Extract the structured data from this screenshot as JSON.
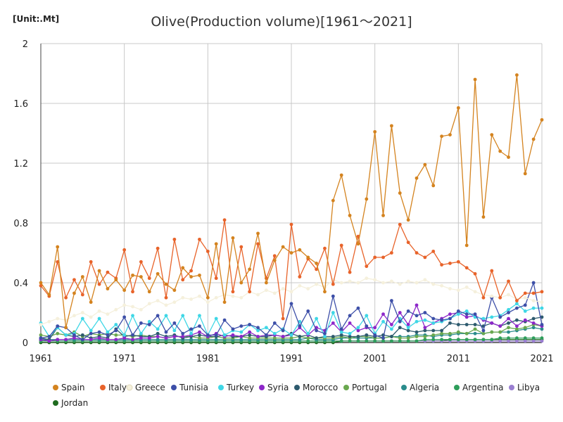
{
  "chart_data": {
    "type": "line",
    "title": "Olive(Production volume)[1961～2021]",
    "unit_label": "[Unit:.Mt]",
    "xlim": [
      1961,
      2021
    ],
    "ylim": [
      0,
      2
    ],
    "x_ticks": [
      1961,
      1971,
      1981,
      1991,
      2001,
      2011,
      2021
    ],
    "y_ticks": [
      0,
      0.4,
      0.8,
      1.2,
      1.6,
      2
    ],
    "y_tick_labels": [
      "0",
      "0.4",
      "0.8",
      "1.2",
      "1.6",
      "2"
    ],
    "grid": true,
    "legend_position": "bottom",
    "series": [
      {
        "name": "Spain",
        "color": "#d4831f",
        "values": [
          0.4,
          0.32,
          0.64,
          0.1,
          0.33,
          0.44,
          0.27,
          0.48,
          0.36,
          0.42,
          0.35,
          0.45,
          0.44,
          0.34,
          0.46,
          0.39,
          0.35,
          0.5,
          0.44,
          0.45,
          0.3,
          0.66,
          0.27,
          0.7,
          0.4,
          0.49,
          0.73,
          0.4,
          0.55,
          0.64,
          0.6,
          0.62,
          0.57,
          0.53,
          0.34,
          0.95,
          1.12,
          0.85,
          0.66,
          0.96,
          1.41,
          0.85,
          1.45,
          1.0,
          0.82,
          1.1,
          1.19,
          1.05,
          1.38,
          1.39,
          1.57,
          0.65,
          1.76,
          0.84,
          1.39,
          1.28,
          1.24,
          1.79,
          1.13,
          1.36,
          1.49
        ]
      },
      {
        "name": "Italy",
        "color": "#e8632a",
        "values": [
          0.38,
          0.31,
          0.54,
          0.3,
          0.42,
          0.32,
          0.54,
          0.39,
          0.47,
          0.43,
          0.62,
          0.34,
          0.54,
          0.43,
          0.63,
          0.3,
          0.69,
          0.42,
          0.48,
          0.69,
          0.61,
          0.43,
          0.82,
          0.34,
          0.64,
          0.34,
          0.66,
          0.43,
          0.58,
          0.16,
          0.79,
          0.44,
          0.56,
          0.49,
          0.63,
          0.39,
          0.65,
          0.47,
          0.71,
          0.51,
          0.57,
          0.57,
          0.6,
          0.79,
          0.67,
          0.6,
          0.57,
          0.61,
          0.52,
          0.53,
          0.54,
          0.5,
          0.46,
          0.3,
          0.48,
          0.3,
          0.41,
          0.28,
          0.33,
          0.33,
          0.34
        ]
      },
      {
        "name": "Greece",
        "color": "#f5f0dc",
        "values": [
          0.12,
          0.14,
          0.16,
          0.15,
          0.18,
          0.2,
          0.17,
          0.21,
          0.19,
          0.22,
          0.25,
          0.24,
          0.22,
          0.26,
          0.28,
          0.25,
          0.27,
          0.3,
          0.29,
          0.31,
          0.27,
          0.3,
          0.32,
          0.31,
          0.3,
          0.34,
          0.32,
          0.35,
          0.33,
          0.36,
          0.34,
          0.38,
          0.36,
          0.39,
          0.37,
          0.42,
          0.4,
          0.41,
          0.4,
          0.43,
          0.42,
          0.4,
          0.41,
          0.39,
          0.41,
          0.4,
          0.42,
          0.39,
          0.38,
          0.36,
          0.35,
          0.37,
          0.34,
          0.32,
          0.31,
          0.3,
          0.32,
          0.29,
          0.3,
          0.28,
          0.27
        ]
      },
      {
        "name": "Tunisia",
        "color": "#3d4fa8",
        "values": [
          0.03,
          0.04,
          0.11,
          0.1,
          0.05,
          0.02,
          0.06,
          0.07,
          0.05,
          0.08,
          0.17,
          0.05,
          0.13,
          0.12,
          0.18,
          0.07,
          0.13,
          0.06,
          0.09,
          0.11,
          0.05,
          0.05,
          0.15,
          0.09,
          0.11,
          0.12,
          0.1,
          0.05,
          0.13,
          0.08,
          0.26,
          0.11,
          0.21,
          0.08,
          0.06,
          0.31,
          0.09,
          0.18,
          0.23,
          0.11,
          0.05,
          0.03,
          0.28,
          0.14,
          0.21,
          0.18,
          0.2,
          0.16,
          0.15,
          0.16,
          0.21,
          0.19,
          0.19,
          0.08,
          0.3,
          0.17,
          0.2,
          0.23,
          0.25,
          0.4,
          0.12
        ]
      },
      {
        "name": "Turkey",
        "color": "#3fd7e6",
        "values": [
          0.13,
          0.04,
          0.1,
          0.05,
          0.06,
          0.16,
          0.08,
          0.16,
          0.07,
          0.12,
          0.05,
          0.18,
          0.06,
          0.14,
          0.09,
          0.18,
          0.08,
          0.18,
          0.06,
          0.18,
          0.05,
          0.16,
          0.05,
          0.08,
          0.07,
          0.12,
          0.08,
          0.1,
          0.06,
          0.09,
          0.05,
          0.14,
          0.06,
          0.16,
          0.04,
          0.2,
          0.07,
          0.06,
          0.1,
          0.18,
          0.06,
          0.14,
          0.09,
          0.16,
          0.1,
          0.14,
          0.15,
          0.13,
          0.14,
          0.16,
          0.19,
          0.21,
          0.17,
          0.16,
          0.17,
          0.18,
          0.22,
          0.26,
          0.21,
          0.23,
          0.23
        ]
      },
      {
        "name": "Syria",
        "color": "#8d27c9",
        "values": [
          0.02,
          0.01,
          0.02,
          0.02,
          0.03,
          0.02,
          0.02,
          0.03,
          0.02,
          0.02,
          0.03,
          0.02,
          0.03,
          0.03,
          0.04,
          0.03,
          0.04,
          0.04,
          0.05,
          0.07,
          0.04,
          0.06,
          0.04,
          0.05,
          0.04,
          0.07,
          0.04,
          0.05,
          0.05,
          0.04,
          0.05,
          0.1,
          0.05,
          0.1,
          0.08,
          0.13,
          0.07,
          0.13,
          0.08,
          0.1,
          0.1,
          0.19,
          0.12,
          0.2,
          0.12,
          0.25,
          0.1,
          0.13,
          0.16,
          0.19,
          0.2,
          0.17,
          0.18,
          0.15,
          0.13,
          0.11,
          0.16,
          0.11,
          0.15,
          0.13,
          0.11
        ]
      },
      {
        "name": "Morocco",
        "color": "#2d5a6e",
        "values": [
          0.03,
          0.02,
          0.1,
          0.05,
          0.04,
          0.05,
          0.03,
          0.04,
          0.03,
          0.09,
          0.04,
          0.05,
          0.04,
          0.04,
          0.06,
          0.04,
          0.05,
          0.03,
          0.04,
          0.05,
          0.04,
          0.04,
          0.05,
          0.04,
          0.04,
          0.05,
          0.04,
          0.04,
          0.05,
          0.04,
          0.06,
          0.04,
          0.05,
          0.03,
          0.04,
          0.04,
          0.05,
          0.04,
          0.04,
          0.05,
          0.04,
          0.05,
          0.04,
          0.1,
          0.08,
          0.07,
          0.08,
          0.08,
          0.08,
          0.13,
          0.12,
          0.12,
          0.12,
          0.11,
          0.13,
          0.11,
          0.13,
          0.15,
          0.14,
          0.16,
          0.17
        ]
      },
      {
        "name": "Portugal",
        "color": "#6aa84f",
        "values": [
          0.05,
          0.04,
          0.06,
          0.05,
          0.07,
          0.04,
          0.06,
          0.05,
          0.06,
          0.05,
          0.05,
          0.04,
          0.05,
          0.04,
          0.04,
          0.03,
          0.04,
          0.04,
          0.04,
          0.03,
          0.03,
          0.04,
          0.03,
          0.03,
          0.04,
          0.03,
          0.03,
          0.03,
          0.03,
          0.03,
          0.03,
          0.04,
          0.03,
          0.03,
          0.03,
          0.03,
          0.04,
          0.03,
          0.04,
          0.04,
          0.03,
          0.03,
          0.04,
          0.03,
          0.03,
          0.04,
          0.04,
          0.05,
          0.06,
          0.06,
          0.07,
          0.06,
          0.09,
          0.06,
          0.07,
          0.07,
          0.1,
          0.09,
          0.1,
          0.12,
          0.11
        ]
      },
      {
        "name": "Algeria",
        "color": "#2a8c8c",
        "values": [
          0.02,
          0.02,
          0.02,
          0.02,
          0.02,
          0.02,
          0.02,
          0.02,
          0.02,
          0.02,
          0.02,
          0.02,
          0.02,
          0.02,
          0.02,
          0.02,
          0.02,
          0.02,
          0.02,
          0.02,
          0.02,
          0.02,
          0.02,
          0.02,
          0.02,
          0.02,
          0.02,
          0.02,
          0.02,
          0.02,
          0.02,
          0.02,
          0.03,
          0.02,
          0.02,
          0.02,
          0.03,
          0.03,
          0.03,
          0.03,
          0.03,
          0.03,
          0.04,
          0.04,
          0.04,
          0.05,
          0.05,
          0.04,
          0.05,
          0.05,
          0.06,
          0.06,
          0.06,
          0.06,
          0.07,
          0.07,
          0.07,
          0.08,
          0.09,
          0.1,
          0.09
        ]
      },
      {
        "name": "Argentina",
        "color": "#2e9e5b",
        "values": [
          0.01,
          0.01,
          0.01,
          0.01,
          0.01,
          0.01,
          0.01,
          0.01,
          0.01,
          0.01,
          0.01,
          0.01,
          0.01,
          0.01,
          0.01,
          0.01,
          0.01,
          0.01,
          0.01,
          0.01,
          0.01,
          0.01,
          0.01,
          0.01,
          0.01,
          0.01,
          0.01,
          0.01,
          0.01,
          0.01,
          0.01,
          0.01,
          0.01,
          0.01,
          0.01,
          0.01,
          0.01,
          0.01,
          0.01,
          0.01,
          0.01,
          0.01,
          0.01,
          0.01,
          0.01,
          0.01,
          0.02,
          0.02,
          0.02,
          0.02,
          0.02,
          0.02,
          0.02,
          0.02,
          0.02,
          0.03,
          0.03,
          0.03,
          0.03,
          0.03,
          0.03
        ]
      },
      {
        "name": "Libya",
        "color": "#9a7fd1",
        "values": [
          0.01,
          0.01,
          0.01,
          0.01,
          0.01,
          0.01,
          0.01,
          0.01,
          0.01,
          0.01,
          0.01,
          0.01,
          0.01,
          0.01,
          0.01,
          0.01,
          0.01,
          0.01,
          0.01,
          0.01,
          0.01,
          0.01,
          0.01,
          0.01,
          0.01,
          0.01,
          0.01,
          0.01,
          0.01,
          0.01,
          0.01,
          0.01,
          0.01,
          0.01,
          0.01,
          0.01,
          0.01,
          0.01,
          0.01,
          0.01,
          0.01,
          0.01,
          0.01,
          0.01,
          0.01,
          0.01,
          0.01,
          0.01,
          0.01,
          0.01,
          0.01,
          0.01,
          0.01,
          0.01,
          0.01,
          0.01,
          0.01,
          0.01,
          0.01,
          0.01,
          0.01
        ]
      },
      {
        "name": "Jordan",
        "color": "#1f6b1f",
        "values": [
          0.0,
          0.0,
          0.0,
          0.0,
          0.0,
          0.0,
          0.0,
          0.0,
          0.0,
          0.0,
          0.0,
          0.0,
          0.0,
          0.0,
          0.0,
          0.0,
          0.0,
          0.0,
          0.0,
          0.0,
          0.0,
          0.0,
          0.0,
          0.0,
          0.0,
          0.0,
          0.0,
          0.0,
          0.0,
          0.0,
          0.0,
          0.0,
          0.0,
          0.0,
          0.0,
          0.0,
          0.01,
          0.01,
          0.01,
          0.01,
          0.01,
          0.01,
          0.01,
          0.01,
          0.01,
          0.01,
          0.01,
          0.01,
          0.01,
          0.02,
          0.02,
          0.02,
          0.02,
          0.02,
          0.02,
          0.02,
          0.02,
          0.02,
          0.02,
          0.02,
          0.02
        ]
      }
    ]
  }
}
